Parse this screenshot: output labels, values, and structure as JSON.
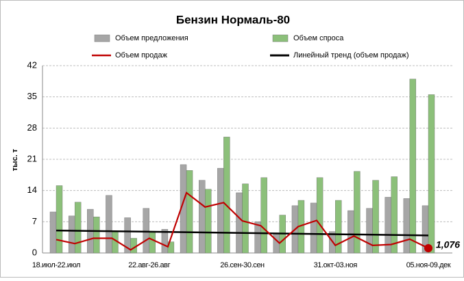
{
  "chart_data": {
    "type": "bar",
    "title": "Бензин Нормаль-80",
    "y_label": "тыс. т",
    "categories": [
      "18.июл-22.июл",
      null,
      null,
      null,
      null,
      "22.авг-26.авг",
      null,
      null,
      null,
      null,
      "26.сен-30.сен",
      null,
      null,
      null,
      null,
      "31.окт-03.ноя",
      null,
      null,
      null,
      null,
      "05.ноя-09.дек"
    ],
    "series": [
      {
        "name": "Объем предложения",
        "color": "#a6a6a6",
        "kind": "bar",
        "values": [
          9.2,
          8.3,
          9.8,
          12.9,
          7.9,
          10.0,
          5.3,
          19.8,
          16.3,
          19.0,
          13.5,
          7.0,
          4.5,
          10.6,
          11.2,
          4.8,
          9.5,
          10.0,
          12.5,
          12.2,
          10.6
        ]
      },
      {
        "name": "Объем спроса",
        "color": "#8cc07a",
        "kind": "bar",
        "values": [
          15.1,
          11.4,
          8.1,
          4.8,
          3.3,
          4.8,
          2.5,
          18.5,
          14.3,
          26.0,
          15.5,
          16.9,
          8.5,
          11.8,
          16.9,
          11.8,
          18.3,
          16.3,
          17.1,
          39.0,
          35.5
        ]
      },
      {
        "name": "Объем продаж",
        "color": "#c00000",
        "kind": "line",
        "values": [
          3.0,
          2.1,
          3.3,
          3.3,
          0.7,
          3.3,
          1.4,
          13.5,
          10.3,
          11.3,
          7.2,
          6.1,
          2.2,
          5.9,
          7.3,
          1.7,
          3.8,
          1.7,
          1.9,
          3.1,
          1.076
        ],
        "value_labels": [
          null,
          null,
          null,
          null,
          null,
          null,
          null,
          null,
          null,
          null,
          null,
          null,
          null,
          null,
          null,
          null,
          null,
          null,
          null,
          null,
          "1,076"
        ]
      },
      {
        "name": "Линейный тренд (объем продаж)",
        "color": "#000000",
        "kind": "trend",
        "of": 2
      }
    ],
    "ylim": [
      0,
      42
    ],
    "yticks": [
      0,
      7,
      14,
      21,
      28,
      35,
      42
    ],
    "grid": true
  }
}
